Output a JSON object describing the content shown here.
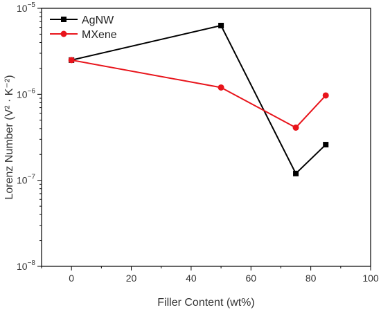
{
  "chart_data": {
    "type": "line",
    "xlabel": "Filler Content (wt%)",
    "ylabel": "Lorenz Number (V² · K⁻²)",
    "xlim": [
      -10,
      100
    ],
    "ylim": [
      1e-08,
      1e-05
    ],
    "yscale": "log",
    "x_ticks": [
      0,
      20,
      40,
      60,
      80,
      100
    ],
    "y_ticks": [
      {
        "value": 1e-08,
        "base": "10",
        "exp": "−8"
      },
      {
        "value": 1e-07,
        "base": "10",
        "exp": "−7"
      },
      {
        "value": 1e-06,
        "base": "10",
        "exp": "−6"
      },
      {
        "value": 1e-05,
        "base": "10",
        "exp": "−5"
      }
    ],
    "grid": false,
    "legend_position": "top-left",
    "series": [
      {
        "name": "AgNW",
        "color": "#000000",
        "marker": "square",
        "x": [
          0,
          50,
          75,
          85
        ],
        "y": [
          2.5e-06,
          6.3e-06,
          1.2e-07,
          2.6e-07
        ]
      },
      {
        "name": "MXene",
        "color": "#e8141b",
        "marker": "circle",
        "x": [
          0,
          50,
          75,
          85
        ],
        "y": [
          2.5e-06,
          1.2e-06,
          4.1e-07,
          9.7e-07
        ]
      }
    ]
  }
}
